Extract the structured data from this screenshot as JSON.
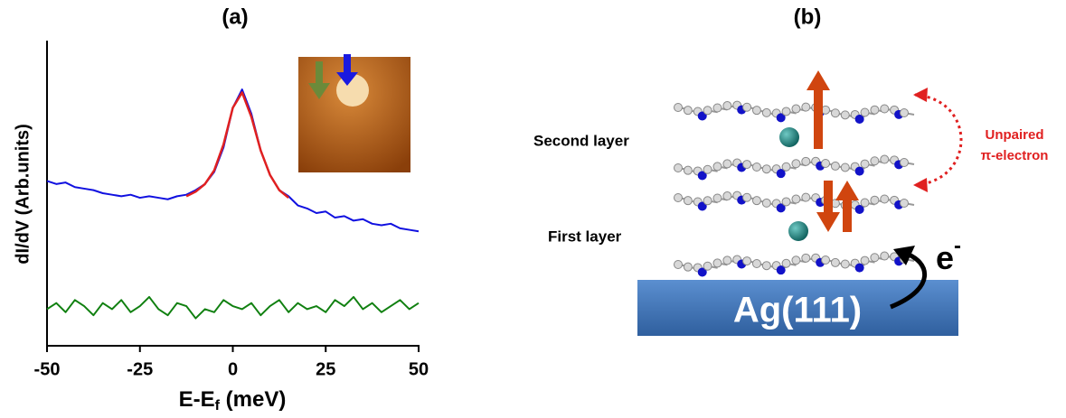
{
  "chart_data": {
    "type": "line",
    "title": "(a)",
    "xlabel": [
      "E-E",
      "f",
      " (meV)"
    ],
    "ylabel": "dI/dV (Arb.units)",
    "xlim": [
      -50,
      50
    ],
    "xticks": [
      -50,
      -25,
      0,
      25,
      50
    ],
    "ylim": [
      0,
      10
    ],
    "x": [
      -50,
      -47.5,
      -45,
      -42.5,
      -40,
      -37.5,
      -35,
      -32.5,
      -30,
      -27.5,
      -25,
      -22.5,
      -20,
      -17.5,
      -15,
      -12.5,
      -10,
      -7.5,
      -5,
      -2.5,
      0,
      2.5,
      5,
      7.5,
      10,
      12.5,
      15,
      17.5,
      20,
      22.5,
      25,
      27.5,
      30,
      32.5,
      35,
      37.5,
      40,
      42.5,
      45,
      47.5,
      50
    ],
    "series": [
      {
        "color": "#1010e0",
        "values": [
          5.4,
          5.3,
          5.35,
          5.2,
          5.15,
          5.1,
          5.0,
          4.95,
          4.9,
          4.95,
          4.85,
          4.9,
          4.85,
          4.8,
          4.9,
          4.95,
          5.1,
          5.3,
          5.7,
          6.5,
          7.8,
          8.4,
          7.6,
          6.4,
          5.6,
          5.1,
          4.9,
          4.6,
          4.5,
          4.35,
          4.4,
          4.2,
          4.25,
          4.1,
          4.15,
          4.0,
          3.95,
          4.0,
          3.85,
          3.8,
          3.75
        ]
      },
      {
        "color": "#e02020",
        "x": [
          -12.5,
          -10,
          -7.5,
          -5,
          -2.5,
          0,
          2.5,
          5,
          7.5,
          10,
          12.5,
          15
        ],
        "values": [
          4.9,
          5.05,
          5.3,
          5.75,
          6.6,
          7.8,
          8.3,
          7.5,
          6.4,
          5.6,
          5.1,
          4.85
        ]
      },
      {
        "color": "#108010",
        "values": [
          1.2,
          1.4,
          1.1,
          1.5,
          1.3,
          1.0,
          1.4,
          1.2,
          1.5,
          1.1,
          1.3,
          1.6,
          1.2,
          1.0,
          1.4,
          1.3,
          0.9,
          1.2,
          1.1,
          1.5,
          1.3,
          1.2,
          1.4,
          1.0,
          1.3,
          1.5,
          1.1,
          1.4,
          1.2,
          1.3,
          1.1,
          1.5,
          1.3,
          1.6,
          1.2,
          1.4,
          1.1,
          1.3,
          1.5,
          1.2,
          1.4
        ]
      }
    ]
  },
  "diagram": {
    "title": "(b)",
    "second_layer": "Second layer",
    "first_layer": "First layer",
    "unpaired": [
      "Unpaired",
      "π-electron"
    ],
    "electron": [
      "e",
      "-"
    ],
    "substrate": "Ag(111)"
  }
}
